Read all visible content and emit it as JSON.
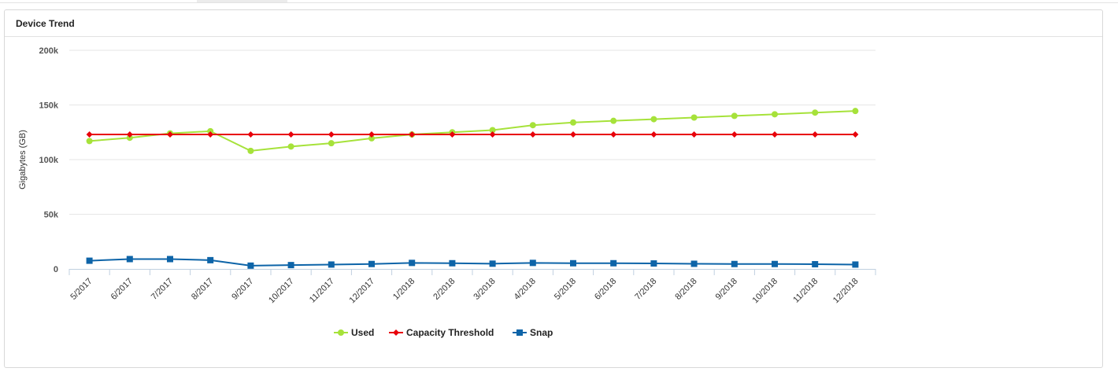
{
  "panel": {
    "title": "Device Trend"
  },
  "colors": {
    "used": "#a6e23a",
    "capacity_threshold": "#e8000b",
    "snap": "#0d64a8",
    "grid": "#e6e6e6",
    "axis": "#c0d0e0"
  },
  "chart_data": {
    "type": "line",
    "title": "",
    "xlabel": "",
    "ylabel": "Gigabytes (GB)",
    "ylim": [
      0,
      200000
    ],
    "yticks": [
      0,
      50000,
      100000,
      150000,
      200000
    ],
    "ytick_labels": [
      "0",
      "50k",
      "100k",
      "150k",
      "200k"
    ],
    "grid": true,
    "legend_position": "bottom",
    "categories": [
      "5/2017",
      "6/2017",
      "7/2017",
      "8/2017",
      "9/2017",
      "10/2017",
      "11/2017",
      "12/2017",
      "1/2018",
      "2/2018",
      "3/2018",
      "4/2018",
      "5/2018",
      "6/2018",
      "7/2018",
      "8/2018",
      "9/2018",
      "10/2018",
      "11/2018",
      "12/2018"
    ],
    "series": [
      {
        "name": "Used",
        "marker": "circle",
        "values": [
          117000,
          120000,
          124000,
          126000,
          108000,
          112000,
          115000,
          119500,
          123000,
          125000,
          127000,
          131500,
          134000,
          135500,
          137000,
          138500,
          140000,
          141500,
          143000,
          144500
        ]
      },
      {
        "name": "Capacity Threshold",
        "marker": "diamond",
        "values": [
          123000,
          123000,
          123000,
          123000,
          123000,
          123000,
          123000,
          123000,
          123000,
          123000,
          123000,
          123000,
          123000,
          123000,
          123000,
          123000,
          123000,
          123000,
          123000,
          123000
        ]
      },
      {
        "name": "Snap",
        "marker": "square",
        "values": [
          7500,
          9000,
          9000,
          8000,
          3000,
          3500,
          4000,
          4500,
          5500,
          5200,
          4800,
          5500,
          5200,
          5200,
          5000,
          4700,
          4500,
          4500,
          4300,
          4000
        ]
      }
    ]
  }
}
